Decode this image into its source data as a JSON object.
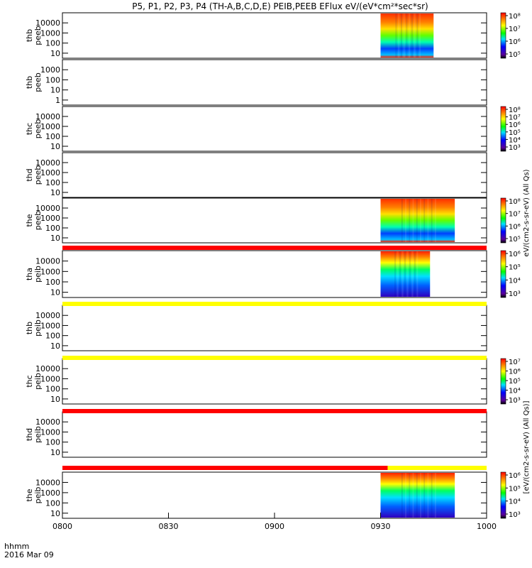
{
  "title": "P5, P1, P2, P3, P4 (TH-A,B,C,D,E) PEIB,PEEB EFlux eV/(eV*cm²*sec*sr)",
  "xaxis": {
    "labels": [
      "0800",
      "0830",
      "0900",
      "0930",
      "1000"
    ],
    "corner_line1": "hhmm",
    "corner_line2": "2016 Mar 09"
  },
  "colorbar_unit_top": "eV/(cm2-s-sr-eV) (All Qs)",
  "colorbar_unit_bottom": "[eV/(cm2-s-sr-eV) (All Qs)]",
  "chart_data": {
    "type": "heatmap",
    "x_range_hhmm": [
      "0800",
      "1000"
    ],
    "colormap": "rainbow (purple-blue-cyan-green-yellow-red)",
    "panels": [
      {
        "label": [
          "thb",
          "peeb"
        ],
        "ylog": true,
        "yticks": [
          "10",
          "100",
          "1000",
          "10000"
        ],
        "data_window": [
          "0930",
          "0945"
        ],
        "colorbar_ticks": [
          "10⁵",
          "10⁶",
          "10⁷",
          "10⁸"
        ]
      },
      {
        "label": [
          "thb",
          "peeb"
        ],
        "ylog": true,
        "yticks": [
          "1",
          "10",
          "100",
          "1000"
        ],
        "data_window": null,
        "colorbar_ticks": []
      },
      {
        "label": [
          "thc",
          "peeb"
        ],
        "ylog": true,
        "yticks": [
          "10",
          "100",
          "1000",
          "10000"
        ],
        "data_window": null,
        "colorbar_ticks": [
          "10³",
          "10⁴",
          "10⁵",
          "10⁶",
          "10⁷",
          "10⁸"
        ]
      },
      {
        "label": [
          "thd",
          "peeb"
        ],
        "ylog": true,
        "yticks": [
          "10",
          "100",
          "1000",
          "10000"
        ],
        "data_window": null,
        "colorbar_ticks": []
      },
      {
        "label": [
          "the",
          "peeb"
        ],
        "ylog": true,
        "yticks": [
          "10",
          "100",
          "1000",
          "10000"
        ],
        "data_window": [
          "0930",
          "0951"
        ],
        "colorbar_ticks": [
          "10⁵",
          "10⁶",
          "10⁷",
          "10⁸"
        ]
      },
      {
        "label": [
          "tha",
          "peib"
        ],
        "ylog": true,
        "yticks": [
          "10",
          "100",
          "1000",
          "10000"
        ],
        "data_window": [
          "0930",
          "0944"
        ],
        "colorbar_ticks": [
          "10³",
          "10⁴",
          "10⁵",
          "10⁶"
        ]
      },
      {
        "label": [
          "thb",
          "peib"
        ],
        "ylog": true,
        "yticks": [
          "10",
          "100",
          "1000",
          "10000"
        ],
        "data_window": null,
        "colorbar_ticks": []
      },
      {
        "label": [
          "thc",
          "peib"
        ],
        "ylog": true,
        "yticks": [
          "10",
          "100",
          "1000",
          "10000"
        ],
        "data_window": null,
        "colorbar_ticks": [
          "10³",
          "10⁴",
          "10⁵",
          "10⁶",
          "10⁷"
        ]
      },
      {
        "label": [
          "thd",
          "peib"
        ],
        "ylog": true,
        "yticks": [
          "10",
          "100",
          "1000",
          "10000"
        ],
        "data_window": null,
        "colorbar_ticks": []
      },
      {
        "label": [
          "the",
          "peib"
        ],
        "ylog": true,
        "yticks": [
          "10",
          "100",
          "1000",
          "10000"
        ],
        "data_window": [
          "0930",
          "0951"
        ],
        "colorbar_ticks": [
          "10³",
          "10⁴",
          "10⁵",
          "10⁶"
        ]
      }
    ],
    "status_bars": [
      {
        "after_panel": 5,
        "color": "#ff0000"
      },
      {
        "after_panel": 6,
        "color": "#ffff00"
      },
      {
        "after_panel": 7,
        "color": "#ffff00"
      },
      {
        "after_panel": 8,
        "color": "#ff0000"
      },
      {
        "after_panel": 9,
        "color": "#ff0000",
        "switch_to": "#ffff00",
        "switch_at_hhmm": "0932"
      }
    ]
  }
}
